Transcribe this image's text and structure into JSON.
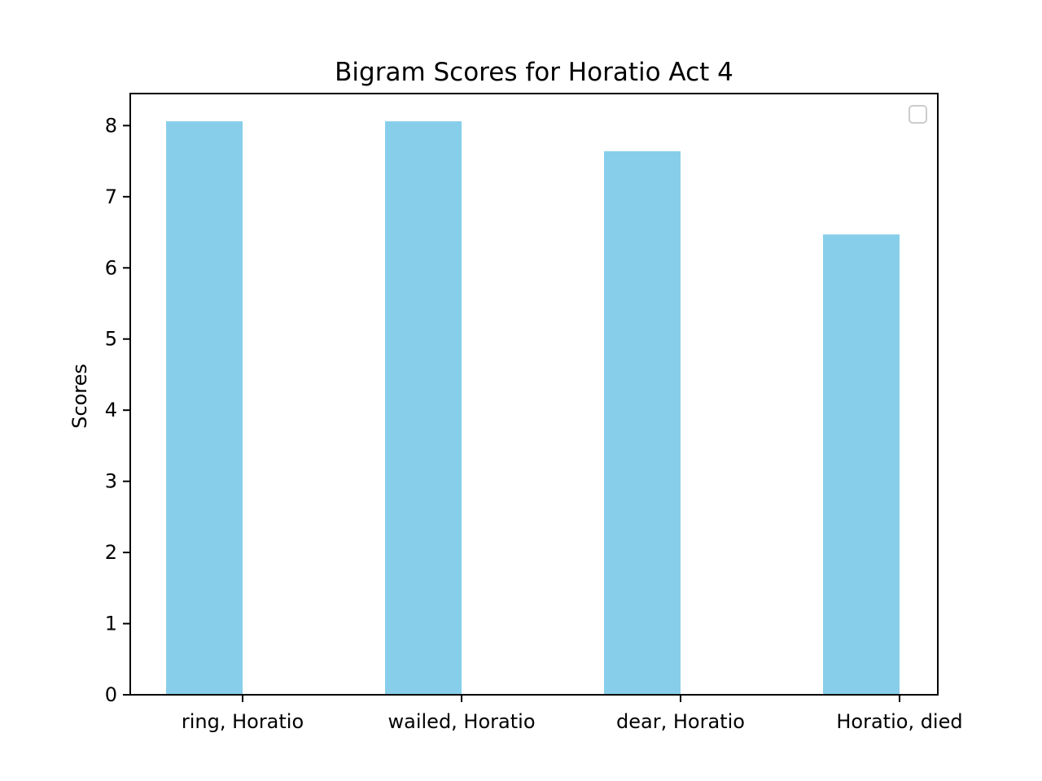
{
  "chart_data": {
    "type": "bar",
    "title": "Bigram Scores for Horatio Act 4",
    "xlabel": "",
    "ylabel": "Scores",
    "categories": [
      "ring, Horatio",
      "wailed, Horatio",
      "dear, Horatio",
      "Horatio, died"
    ],
    "values": [
      8.06,
      8.06,
      7.64,
      6.47
    ],
    "ylim": [
      0,
      8.45
    ],
    "yticks": [
      0,
      1,
      2,
      3,
      4,
      5,
      6,
      7,
      8
    ],
    "bar_color": "#87ceeb",
    "grid": false,
    "legend": "top-right, empty"
  }
}
